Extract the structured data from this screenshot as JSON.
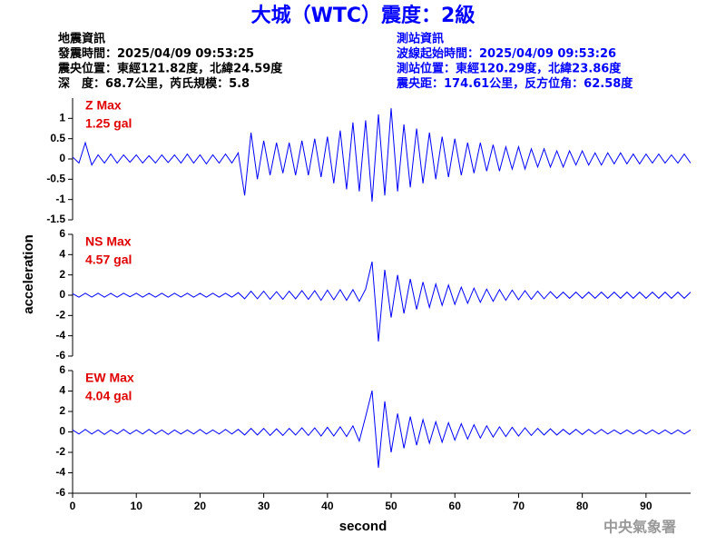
{
  "title": "大城（WTC）震度：2級",
  "info_left": [
    "地震資訊",
    "發震時間：2025/04/09 09:53:25",
    "震央位置：東經121.82度，北緯24.59度",
    "深　度：68.7公里，芮氏規模：5.8"
  ],
  "info_right": [
    "測站資訊",
    "波線起始時間：2025/04/09 09:53:26",
    "測站位置：東經120.29度，北緯23.86度",
    "震央距：174.61公里，反方位角：62.58度"
  ],
  "y_label": "acceleration",
  "x_label": "second",
  "footer": "中央氣象署",
  "chart_data": [
    {
      "type": "line",
      "annotations": [
        "Z Max",
        "1.25 gal"
      ],
      "xlim": [
        0,
        97
      ],
      "ylim": [
        -1.5,
        1.5
      ],
      "yticks": [
        -1.5,
        -1,
        -0.5,
        0,
        0.5,
        1
      ],
      "x": [
        0,
        1,
        2,
        3,
        4,
        5,
        6,
        7,
        8,
        9,
        10,
        11,
        12,
        13,
        14,
        15,
        16,
        17,
        18,
        19,
        20,
        21,
        22,
        23,
        24,
        25,
        26,
        27,
        28,
        29,
        30,
        31,
        32,
        33,
        34,
        35,
        36,
        37,
        38,
        39,
        40,
        41,
        42,
        43,
        44,
        45,
        46,
        47,
        48,
        49,
        50,
        51,
        52,
        53,
        54,
        55,
        56,
        57,
        58,
        59,
        60,
        61,
        62,
        63,
        64,
        65,
        66,
        67,
        68,
        69,
        70,
        71,
        72,
        73,
        74,
        75,
        76,
        77,
        78,
        79,
        80,
        81,
        82,
        83,
        84,
        85,
        86,
        87,
        88,
        89,
        90,
        91,
        92,
        93,
        94,
        95,
        96,
        97
      ],
      "series": [
        {
          "color": "#0000ff",
          "values": [
            0.05,
            -0.1,
            0.4,
            -0.15,
            0.1,
            -0.1,
            0.12,
            -0.1,
            0.1,
            -0.08,
            0.1,
            -0.1,
            0.08,
            -0.1,
            0.1,
            -0.09,
            0.1,
            -0.1,
            0.12,
            -0.1,
            0.1,
            -0.12,
            0.1,
            -0.1,
            0.12,
            -0.1,
            0.15,
            -0.9,
            0.65,
            -0.5,
            0.45,
            -0.4,
            0.4,
            -0.35,
            0.4,
            -0.4,
            0.45,
            -0.4,
            0.5,
            -0.45,
            0.55,
            -0.6,
            0.7,
            -0.75,
            0.9,
            -0.8,
            0.95,
            -1.05,
            1.1,
            -0.9,
            1.25,
            -0.8,
            0.85,
            -0.7,
            0.75,
            -0.6,
            0.65,
            -0.5,
            0.55,
            -0.45,
            0.5,
            -0.4,
            0.4,
            -0.35,
            0.4,
            -0.3,
            0.35,
            -0.3,
            0.3,
            -0.25,
            0.3,
            -0.25,
            0.25,
            -0.2,
            0.25,
            -0.2,
            0.2,
            -0.2,
            0.2,
            -0.15,
            0.2,
            -0.15,
            0.15,
            -0.15,
            0.15,
            -0.12,
            0.15,
            -0.12,
            0.12,
            -0.12,
            0.12,
            -0.1,
            0.12,
            -0.1,
            0.1,
            -0.1,
            0.12,
            -0.1
          ]
        }
      ]
    },
    {
      "type": "line",
      "annotations": [
        "NS Max",
        "4.57 gal"
      ],
      "xlim": [
        0,
        97
      ],
      "ylim": [
        -6,
        6
      ],
      "yticks": [
        -6,
        -4,
        -2,
        0,
        2,
        4,
        6
      ],
      "x": [
        0,
        1,
        2,
        3,
        4,
        5,
        6,
        7,
        8,
        9,
        10,
        11,
        12,
        13,
        14,
        15,
        16,
        17,
        18,
        19,
        20,
        21,
        22,
        23,
        24,
        25,
        26,
        27,
        28,
        29,
        30,
        31,
        32,
        33,
        34,
        35,
        36,
        37,
        38,
        39,
        40,
        41,
        42,
        43,
        44,
        45,
        46,
        47,
        48,
        49,
        50,
        51,
        52,
        53,
        54,
        55,
        56,
        57,
        58,
        59,
        60,
        61,
        62,
        63,
        64,
        65,
        66,
        67,
        68,
        69,
        70,
        71,
        72,
        73,
        74,
        75,
        76,
        77,
        78,
        79,
        80,
        81,
        82,
        83,
        84,
        85,
        86,
        87,
        88,
        89,
        90,
        91,
        92,
        93,
        94,
        95,
        96,
        97
      ],
      "series": [
        {
          "color": "#0000ff",
          "values": [
            0.15,
            -0.2,
            0.2,
            -0.18,
            0.2,
            -0.2,
            0.18,
            -0.2,
            0.2,
            -0.15,
            0.2,
            -0.2,
            0.18,
            -0.2,
            0.2,
            -0.2,
            0.2,
            -0.18,
            0.2,
            -0.2,
            0.18,
            -0.2,
            0.2,
            -0.2,
            0.2,
            -0.2,
            0.25,
            -0.35,
            0.4,
            -0.35,
            0.4,
            -0.4,
            0.35,
            -0.4,
            0.4,
            -0.35,
            0.45,
            -0.4,
            0.45,
            -0.5,
            0.5,
            -0.45,
            0.55,
            -0.5,
            0.55,
            -0.6,
            0.6,
            3.3,
            -4.57,
            2.5,
            -2.2,
            2.0,
            -1.8,
            1.6,
            -1.4,
            1.3,
            -1.2,
            1.1,
            -1.0,
            1.0,
            -0.9,
            0.8,
            -0.8,
            0.7,
            -0.7,
            0.6,
            -0.6,
            0.55,
            -0.5,
            0.5,
            -0.45,
            0.45,
            -0.4,
            0.4,
            -0.35,
            0.35,
            -0.3,
            0.3,
            -0.3,
            0.3,
            -0.3,
            0.3,
            -0.3,
            0.3,
            -0.3,
            0.3,
            -0.3,
            0.3,
            -0.3,
            0.3,
            -0.3,
            0.3,
            -0.3,
            0.3,
            -0.3,
            0.3,
            -0.3,
            0.3
          ]
        }
      ]
    },
    {
      "type": "line",
      "annotations": [
        "EW Max",
        "4.04 gal"
      ],
      "xlim": [
        0,
        97
      ],
      "ylim": [
        -6,
        6
      ],
      "yticks": [
        -6,
        -4,
        -2,
        0,
        2,
        4,
        6
      ],
      "xticks": [
        0,
        10,
        20,
        30,
        40,
        50,
        60,
        70,
        80,
        90
      ],
      "x": [
        0,
        1,
        2,
        3,
        4,
        5,
        6,
        7,
        8,
        9,
        10,
        11,
        12,
        13,
        14,
        15,
        16,
        17,
        18,
        19,
        20,
        21,
        22,
        23,
        24,
        25,
        26,
        27,
        28,
        29,
        30,
        31,
        32,
        33,
        34,
        35,
        36,
        37,
        38,
        39,
        40,
        41,
        42,
        43,
        44,
        45,
        46,
        47,
        48,
        49,
        50,
        51,
        52,
        53,
        54,
        55,
        56,
        57,
        58,
        59,
        60,
        61,
        62,
        63,
        64,
        65,
        66,
        67,
        68,
        69,
        70,
        71,
        72,
        73,
        74,
        75,
        76,
        77,
        78,
        79,
        80,
        81,
        82,
        83,
        84,
        85,
        86,
        87,
        88,
        89,
        90,
        91,
        92,
        93,
        94,
        95,
        96,
        97
      ],
      "series": [
        {
          "color": "#0000ff",
          "values": [
            0.2,
            -0.2,
            0.25,
            -0.2,
            0.2,
            -0.25,
            0.2,
            -0.2,
            0.25,
            -0.2,
            0.2,
            -0.2,
            0.25,
            -0.2,
            0.2,
            -0.25,
            0.2,
            -0.2,
            0.2,
            -0.2,
            0.25,
            -0.2,
            0.2,
            -0.2,
            0.25,
            -0.2,
            0.25,
            -0.3,
            0.35,
            -0.3,
            0.35,
            -0.35,
            0.3,
            -0.35,
            0.35,
            -0.3,
            0.4,
            -0.35,
            0.4,
            -0.4,
            0.45,
            -0.4,
            0.5,
            -0.45,
            0.6,
            -0.9,
            1.5,
            4.04,
            -3.5,
            3.0,
            -2.0,
            1.8,
            -1.6,
            1.5,
            -1.3,
            1.2,
            -1.1,
            1.0,
            -1.0,
            0.9,
            -0.8,
            0.8,
            -0.7,
            0.7,
            -0.6,
            0.6,
            -0.5,
            0.5,
            -0.45,
            0.45,
            -0.4,
            0.4,
            -0.35,
            0.35,
            -0.3,
            0.3,
            -0.3,
            0.25,
            -0.25,
            0.25,
            -0.25,
            0.25,
            -0.2,
            0.25,
            -0.2,
            0.2,
            -0.2,
            0.2,
            -0.2,
            0.2,
            -0.2,
            0.2,
            -0.2,
            0.2,
            -0.2,
            0.2,
            -0.2,
            0.2
          ]
        }
      ]
    }
  ]
}
